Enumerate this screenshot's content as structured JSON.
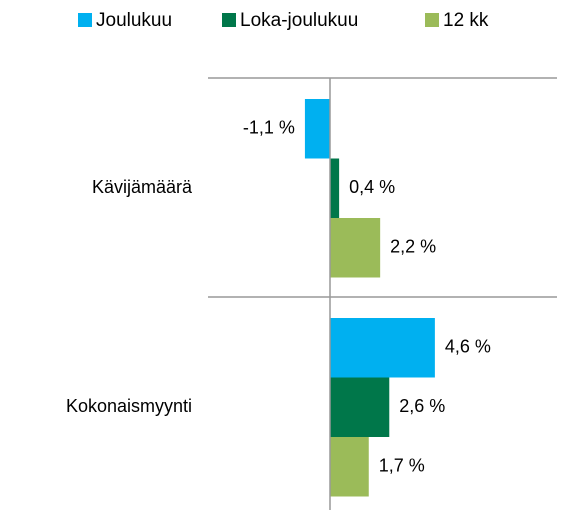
{
  "chart_data": {
    "type": "hbar",
    "categories": [
      "Kävijämäärä",
      "Kokonaismyynti"
    ],
    "series": [
      {
        "name": "Joulukuu",
        "color": "#00b0f0",
        "values": [
          -1.1,
          4.6
        ],
        "value_labels": [
          "-1,1 %",
          "4,6 %"
        ]
      },
      {
        "name": "Loka-joulukuu",
        "color": "#00774a",
        "values": [
          0.4,
          2.6
        ],
        "value_labels": [
          "0,4 %",
          "2,6 %"
        ]
      },
      {
        "name": "12 kk",
        "color": "#9bbb59",
        "values": [
          2.2,
          1.7
        ],
        "value_labels": [
          "2,2 %",
          "1,7 %"
        ]
      }
    ],
    "legend": "top"
  }
}
